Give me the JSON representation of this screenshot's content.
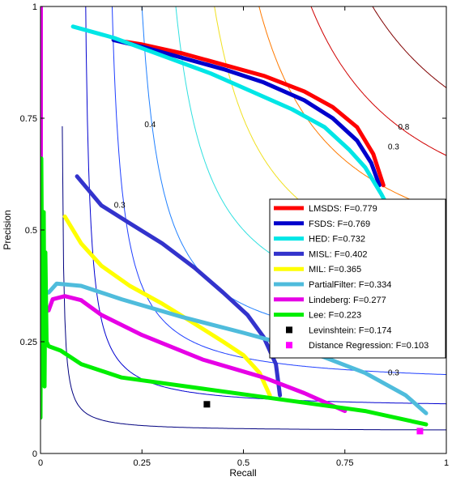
{
  "chart_data": {
    "type": "line",
    "xlabel": "Recall",
    "ylabel": "Precision",
    "xlim": [
      0,
      1
    ],
    "ylim": [
      0,
      1
    ],
    "grid": false,
    "legend_position": "right",
    "x_ticks": [
      {
        "value": 0,
        "label": "0"
      },
      {
        "value": 0.25,
        "label": "0.25"
      },
      {
        "value": 0.5,
        "label": "0.5"
      },
      {
        "value": 0.75,
        "label": "0.75"
      },
      {
        "value": 1,
        "label": "1"
      }
    ],
    "y_ticks": [
      {
        "value": 0,
        "label": "0"
      },
      {
        "value": 0.25,
        "label": "0.25"
      },
      {
        "value": 0.5,
        "label": "0.5"
      },
      {
        "value": 0.75,
        "label": "0.75"
      },
      {
        "value": 1,
        "label": "1"
      }
    ],
    "iso_f_curves": [
      {
        "f": 0.1,
        "color": "#00007f"
      },
      {
        "f": 0.2,
        "color": "#0000d0"
      },
      {
        "f": 0.3,
        "color": "#1f3fff"
      },
      {
        "f": 0.4,
        "color": "#2080ff"
      },
      {
        "f": 0.5,
        "color": "#30e0e0"
      },
      {
        "f": 0.6,
        "color": "#f0e020"
      },
      {
        "f": 0.7,
        "color": "#ff7a00"
      },
      {
        "f": 0.8,
        "color": "#d00000"
      },
      {
        "f": 0.9,
        "color": "#800000"
      }
    ],
    "iso_labels": [
      {
        "text": "0.4",
        "x": 0.27,
        "y": 0.73
      },
      {
        "text": "0.3",
        "x": 0.195,
        "y": 0.55
      },
      {
        "text": "0.8",
        "x": 0.895,
        "y": 0.725
      },
      {
        "text": "0.3",
        "x": 0.87,
        "y": 0.68
      },
      {
        "text": "0.3",
        "x": 0.87,
        "y": 0.175
      }
    ],
    "series": [
      {
        "name": "LMSDS: F=0.779",
        "color": "#ff0000",
        "width": 5,
        "points": [
          [
            0.18,
            0.925
          ],
          [
            0.25,
            0.915
          ],
          [
            0.35,
            0.895
          ],
          [
            0.45,
            0.87
          ],
          [
            0.55,
            0.845
          ],
          [
            0.65,
            0.81
          ],
          [
            0.72,
            0.775
          ],
          [
            0.78,
            0.73
          ],
          [
            0.82,
            0.67
          ],
          [
            0.845,
            0.6
          ]
        ]
      },
      {
        "name": "FSDS: F=0.769",
        "color": "#0000cc",
        "width": 5,
        "points": [
          [
            0.18,
            0.925
          ],
          [
            0.25,
            0.91
          ],
          [
            0.35,
            0.885
          ],
          [
            0.45,
            0.86
          ],
          [
            0.55,
            0.83
          ],
          [
            0.65,
            0.79
          ],
          [
            0.72,
            0.75
          ],
          [
            0.78,
            0.7
          ],
          [
            0.815,
            0.65
          ],
          [
            0.835,
            0.6
          ]
        ]
      },
      {
        "name": "HED: F=0.732",
        "color": "#00e6e6",
        "width": 5,
        "points": [
          [
            0.08,
            0.955
          ],
          [
            0.18,
            0.93
          ],
          [
            0.3,
            0.89
          ],
          [
            0.42,
            0.85
          ],
          [
            0.52,
            0.81
          ],
          [
            0.62,
            0.77
          ],
          [
            0.7,
            0.73
          ],
          [
            0.76,
            0.68
          ],
          [
            0.8,
            0.64
          ],
          [
            0.84,
            0.58
          ],
          [
            0.875,
            0.52
          ]
        ]
      },
      {
        "name": "MISL: F=0.402",
        "color": "#3333cc",
        "width": 5,
        "points": [
          [
            0.09,
            0.62
          ],
          [
            0.15,
            0.555
          ],
          [
            0.22,
            0.515
          ],
          [
            0.3,
            0.47
          ],
          [
            0.38,
            0.415
          ],
          [
            0.45,
            0.36
          ],
          [
            0.51,
            0.31
          ],
          [
            0.55,
            0.26
          ],
          [
            0.58,
            0.2
          ],
          [
            0.59,
            0.13
          ]
        ]
      },
      {
        "name": "MIL: F=0.365",
        "color": "#ffff00",
        "width": 5,
        "points": [
          [
            0.06,
            0.53
          ],
          [
            0.1,
            0.47
          ],
          [
            0.15,
            0.42
          ],
          [
            0.22,
            0.375
          ],
          [
            0.3,
            0.335
          ],
          [
            0.38,
            0.29
          ],
          [
            0.45,
            0.25
          ],
          [
            0.5,
            0.22
          ],
          [
            0.54,
            0.18
          ],
          [
            0.565,
            0.13
          ]
        ]
      },
      {
        "name": "PartialFilter: F=0.334",
        "color": "#4fbcdc",
        "width": 5,
        "points": [
          [
            0.02,
            0.36
          ],
          [
            0.04,
            0.38
          ],
          [
            0.1,
            0.375
          ],
          [
            0.2,
            0.345
          ],
          [
            0.35,
            0.305
          ],
          [
            0.5,
            0.27
          ],
          [
            0.6,
            0.245
          ],
          [
            0.7,
            0.215
          ],
          [
            0.8,
            0.18
          ],
          [
            0.9,
            0.13
          ],
          [
            0.95,
            0.09
          ]
        ]
      },
      {
        "name": "Lindeberg: F=0.277",
        "color": "#e600e6",
        "width": 5,
        "points": [
          [
            0.02,
            0.32
          ],
          [
            0.03,
            0.345
          ],
          [
            0.06,
            0.352
          ],
          [
            0.1,
            0.343
          ],
          [
            0.15,
            0.31
          ],
          [
            0.25,
            0.265
          ],
          [
            0.4,
            0.21
          ],
          [
            0.55,
            0.17
          ],
          [
            0.65,
            0.135
          ],
          [
            0.75,
            0.095
          ]
        ]
      },
      {
        "name": "Lee: F=0.223",
        "color": "#00ee00",
        "width": 5,
        "points": [
          [
            0,
            0.08
          ],
          [
            0.002,
            0.66
          ],
          [
            0.005,
            0.2
          ],
          [
            0.008,
            0.54
          ],
          [
            0.01,
            0.15
          ],
          [
            0.012,
            0.45
          ],
          [
            0.015,
            0.25
          ],
          [
            0.02,
            0.24
          ],
          [
            0.05,
            0.23
          ],
          [
            0.1,
            0.2
          ],
          [
            0.2,
            0.17
          ],
          [
            0.4,
            0.145
          ],
          [
            0.6,
            0.12
          ],
          [
            0.8,
            0.095
          ],
          [
            0.95,
            0.065
          ]
        ]
      }
    ],
    "markers": [
      {
        "name": "Levinshtein: F=0.174",
        "color": "#000000",
        "x": 0.41,
        "y": 0.11
      },
      {
        "name": "Distance Regression: F=0.103",
        "color": "#ff00ff",
        "x": 0.935,
        "y": 0.05
      }
    ],
    "vertical_line": {
      "x": 0.0,
      "y0": 0.66,
      "y1": 1.0,
      "color": "#e600e6"
    }
  }
}
